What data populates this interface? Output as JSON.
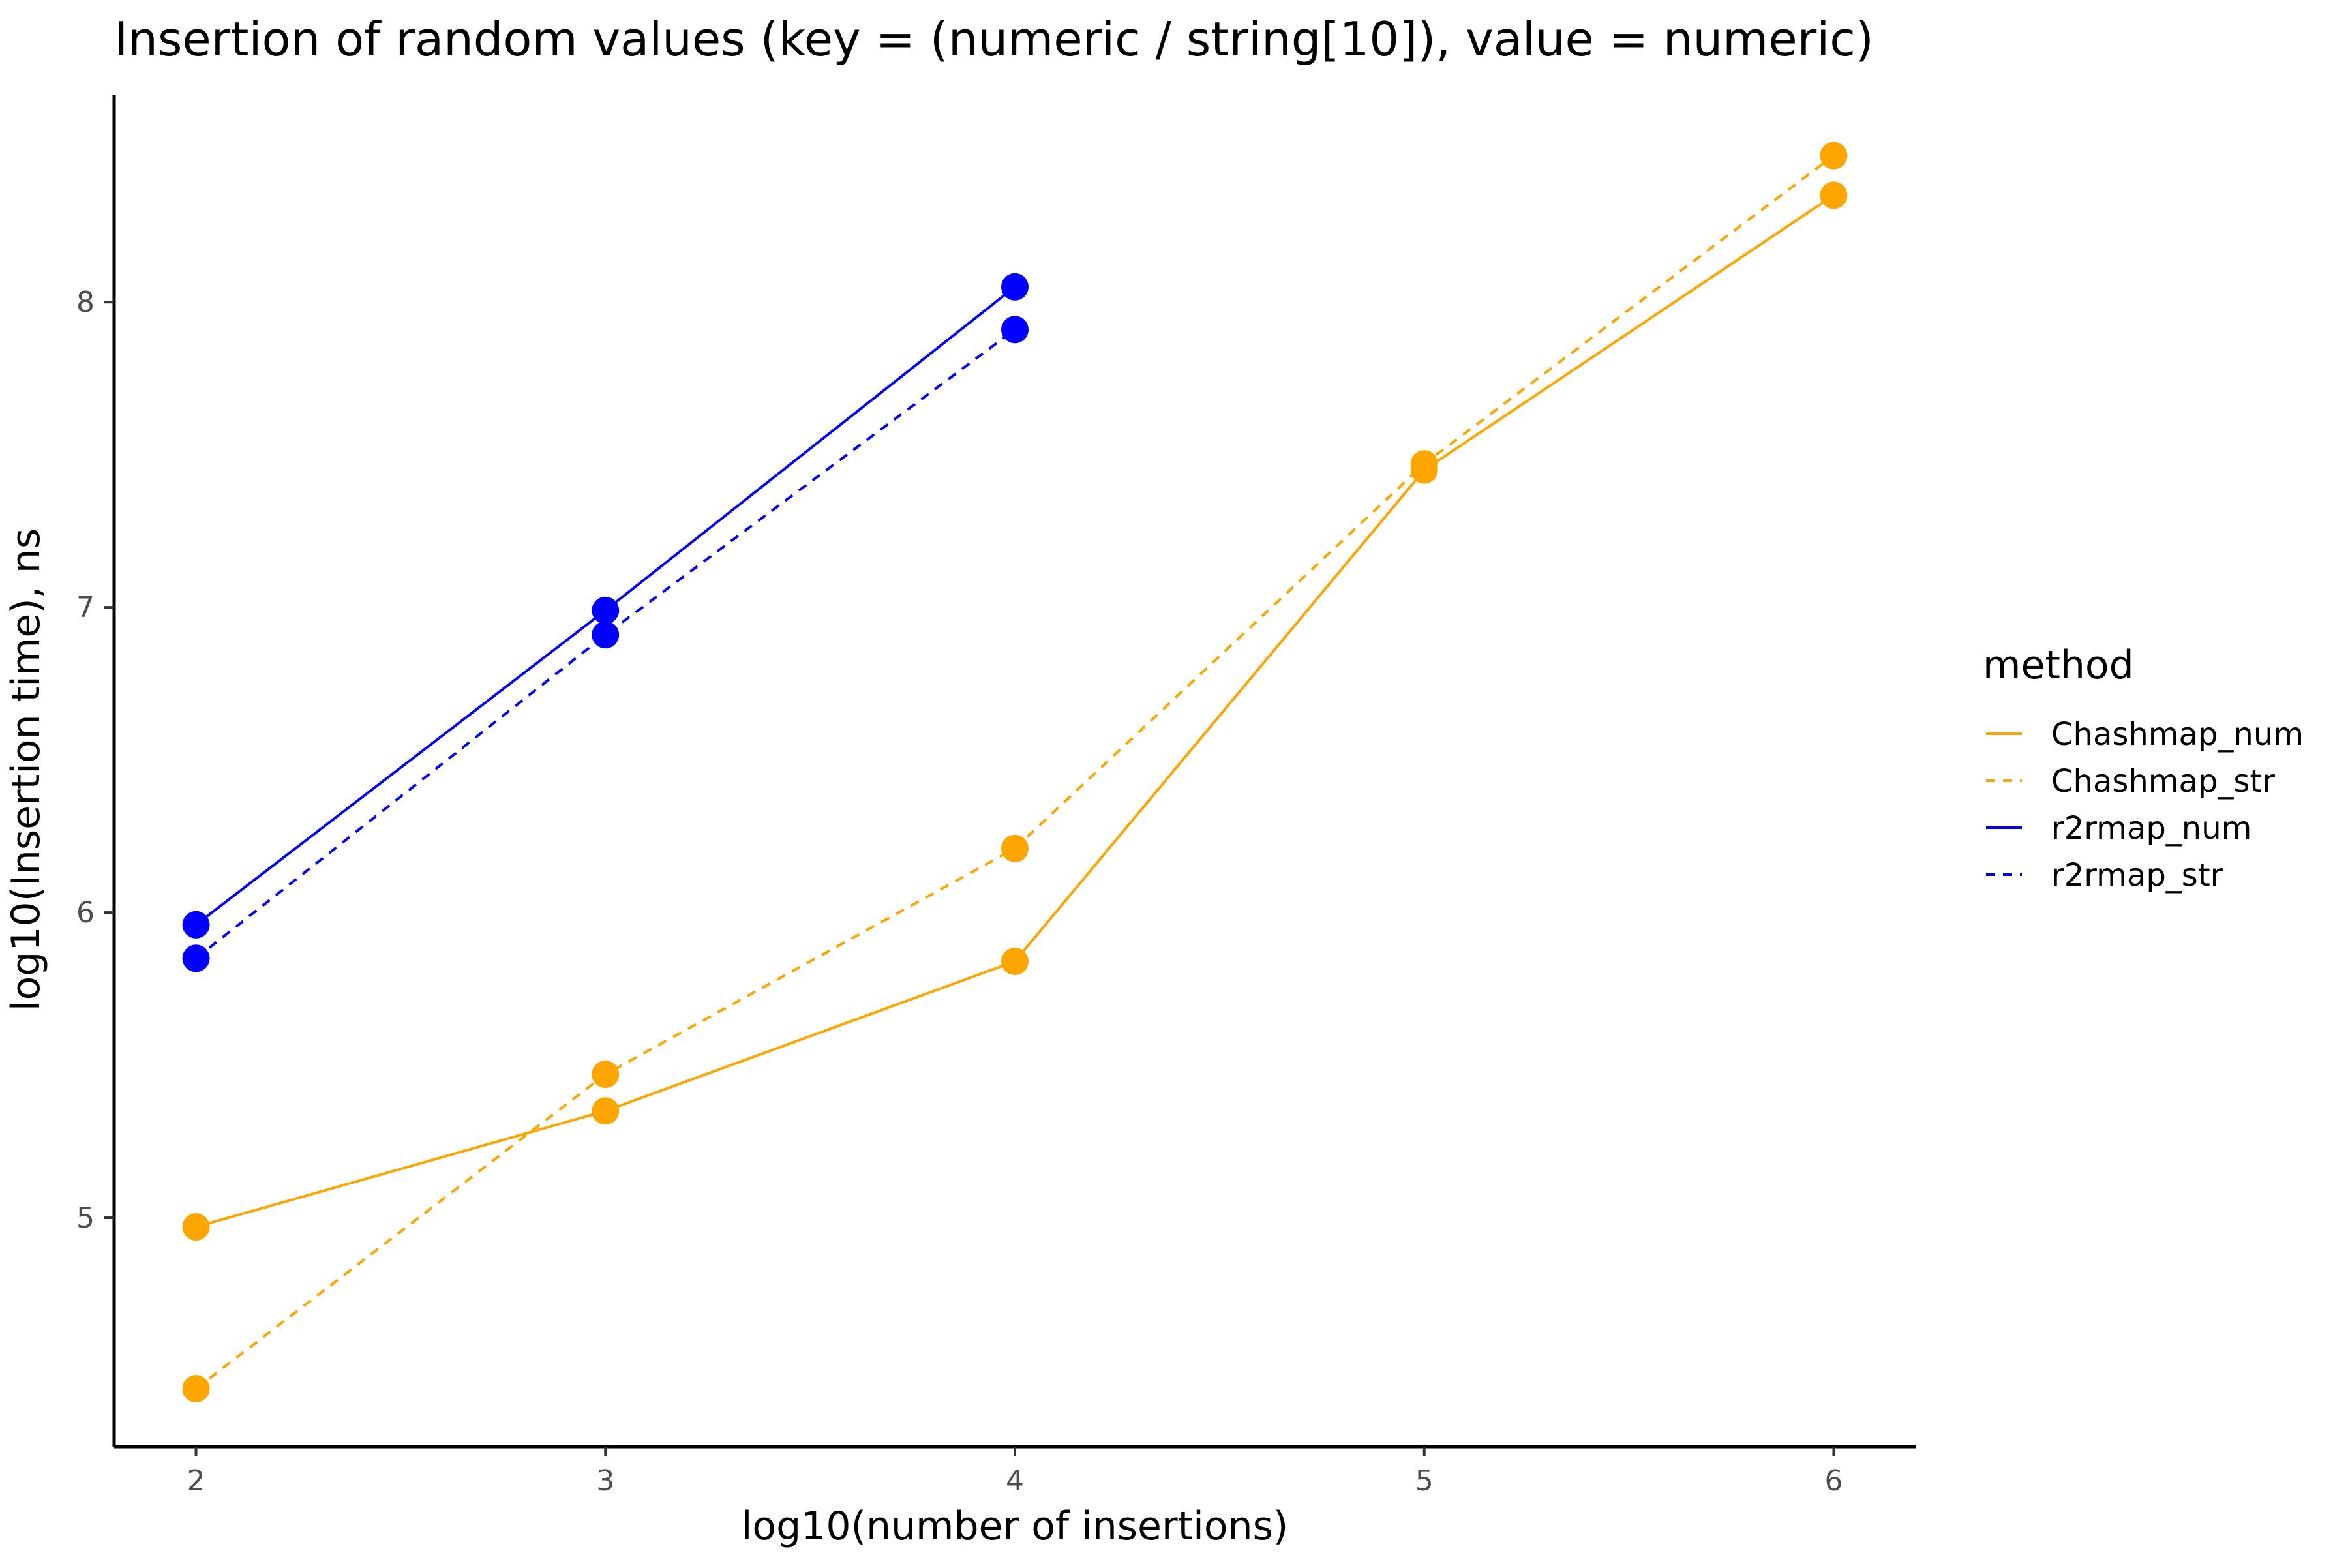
{
  "chart_data": {
    "type": "line",
    "title": "Insertion of random values (key = (numeric / string[10]), value = numeric)",
    "xlabel": "log10(number of insertions)",
    "ylabel": "log10(Insertion time), ns",
    "xlim": [
      1.8,
      6.2
    ],
    "ylim": [
      4.25,
      8.68
    ],
    "x_ticks": [
      2,
      3,
      4,
      5,
      6
    ],
    "y_ticks": [
      5,
      6,
      7,
      8
    ],
    "grid": false,
    "legend": {
      "title": "method",
      "position": "right"
    },
    "series": [
      {
        "name": "Chashmap_num",
        "color": "#FFA500",
        "dash": "solid",
        "x": [
          2,
          3,
          4,
          5,
          6
        ],
        "y": [
          4.97,
          5.35,
          5.84,
          7.45,
          8.35
        ]
      },
      {
        "name": "Chashmap_str",
        "color": "#FFA500",
        "dash": "dashed",
        "x": [
          2,
          3,
          4,
          5,
          6
        ],
        "y": [
          4.44,
          5.47,
          6.21,
          7.47,
          8.48
        ]
      },
      {
        "name": "r2rmap_num",
        "color": "#0000FF",
        "dash": "solid",
        "x": [
          2,
          3,
          4
        ],
        "y": [
          5.96,
          6.99,
          8.05
        ]
      },
      {
        "name": "r2rmap_str",
        "color": "#0000FF",
        "dash": "dashed",
        "x": [
          2,
          3,
          4
        ],
        "y": [
          5.85,
          6.91,
          7.91
        ]
      }
    ]
  }
}
